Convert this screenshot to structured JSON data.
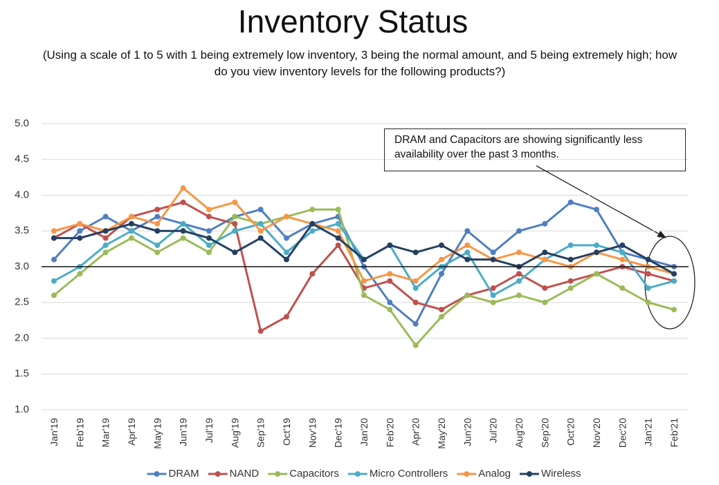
{
  "chart_data": {
    "type": "line",
    "title": "Inventory Status",
    "subtitle": "(Using a scale of 1 to 5 with 1 being extremely low inventory, 3 being the normal amount, and 5 being extremely high; how do you view inventory levels for the following products?)",
    "annotation": "DRAM and Capacitors are showing significantly less availability over the past 3 months.",
    "categories": [
      "Jan'19",
      "Feb'19",
      "Mar'19",
      "Apr'19",
      "May'19",
      "Jun'19",
      "Jul'19",
      "Aug'19",
      "Sep'19",
      "Oct'19",
      "Nov'19",
      "Dec'19",
      "Jan'20",
      "Feb'20",
      "Apr'20",
      "May'20",
      "Jun'20",
      "Jul'20",
      "Aug'20",
      "Sep'20",
      "Oct'20",
      "Nov'20",
      "Dec'20",
      "Jan'21",
      "Feb'21"
    ],
    "series": [
      {
        "name": "DRAM",
        "color": "#4f7ec0",
        "values": [
          3.1,
          3.5,
          3.7,
          3.5,
          3.7,
          3.6,
          3.5,
          3.7,
          3.8,
          3.4,
          3.6,
          3.7,
          3.0,
          2.5,
          2.2,
          2.9,
          3.5,
          3.2,
          3.5,
          3.6,
          3.9,
          3.8,
          3.2,
          3.1,
          3.0
        ]
      },
      {
        "name": "NAND",
        "color": "#c0504d",
        "values": [
          3.4,
          3.6,
          3.4,
          3.7,
          3.8,
          3.9,
          3.7,
          3.6,
          2.1,
          2.3,
          2.9,
          3.3,
          2.7,
          2.8,
          2.5,
          2.4,
          2.6,
          2.7,
          2.9,
          2.7,
          2.8,
          2.9,
          3.0,
          2.9,
          2.8
        ]
      },
      {
        "name": "Capacitors",
        "color": "#9bbb59",
        "values": [
          2.6,
          2.9,
          3.2,
          3.4,
          3.2,
          3.4,
          3.2,
          3.7,
          3.6,
          3.7,
          3.8,
          3.8,
          2.6,
          2.4,
          1.9,
          2.3,
          2.6,
          2.5,
          2.6,
          2.5,
          2.7,
          2.9,
          2.7,
          2.5,
          2.4
        ]
      },
      {
        "name": "Micro Controllers",
        "color": "#4bacc6",
        "values": [
          2.8,
          3.0,
          3.3,
          3.5,
          3.3,
          3.6,
          3.3,
          3.5,
          3.6,
          3.2,
          3.5,
          3.6,
          3.1,
          3.3,
          2.7,
          3.0,
          3.2,
          2.6,
          2.8,
          3.1,
          3.3,
          3.3,
          3.2,
          2.7,
          2.8
        ]
      },
      {
        "name": "Analog",
        "color": "#f79646",
        "values": [
          3.5,
          3.6,
          3.5,
          3.7,
          3.6,
          4.1,
          3.8,
          3.9,
          3.5,
          3.7,
          3.6,
          3.5,
          2.8,
          2.9,
          2.8,
          3.1,
          3.3,
          3.1,
          3.2,
          3.1,
          3.0,
          3.2,
          3.1,
          3.0,
          2.9
        ]
      },
      {
        "name": "Wireless",
        "color": "#243f60",
        "values": [
          3.4,
          3.4,
          3.5,
          3.6,
          3.5,
          3.5,
          3.4,
          3.2,
          3.4,
          3.1,
          3.6,
          3.4,
          3.1,
          3.3,
          3.2,
          3.3,
          3.1,
          3.1,
          3.0,
          3.2,
          3.1,
          3.2,
          3.3,
          3.1,
          2.9
        ]
      }
    ],
    "reference_line": 3.0,
    "ylim": [
      1,
      5
    ],
    "yticks": [
      {
        "value": 1,
        "label": "1.0"
      },
      {
        "value": 1.5,
        "label": "1.5"
      },
      {
        "value": 2,
        "label": "2.0"
      },
      {
        "value": 2.5,
        "label": "2.5"
      },
      {
        "value": 3,
        "label": "3.0"
      },
      {
        "value": 3.5,
        "label": "3.5"
      },
      {
        "value": 4,
        "label": "4.0"
      },
      {
        "value": 4.5,
        "label": "4.5"
      },
      {
        "value": 5,
        "label": "5.0"
      }
    ],
    "grid": true,
    "legend": "bottom"
  }
}
